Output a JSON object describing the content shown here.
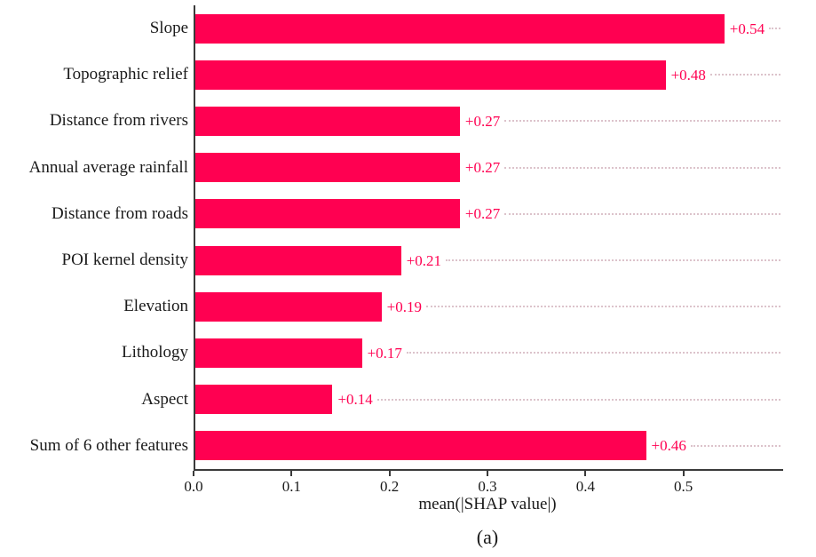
{
  "chart_data": {
    "type": "bar",
    "orientation": "horizontal",
    "title": "",
    "categories": [
      "Slope",
      "Topographic relief",
      "Distance from rivers",
      "Annual average rainfall",
      "Distance from roads",
      "POI kernel density",
      "Elevation",
      "Lithology",
      "Aspect",
      "Sum of 6 other features"
    ],
    "values": [
      0.54,
      0.48,
      0.27,
      0.27,
      0.27,
      0.21,
      0.19,
      0.17,
      0.14,
      0.46
    ],
    "value_labels": [
      "+0.54",
      "+0.48",
      "+0.27",
      "+0.27",
      "+0.27",
      "+0.21",
      "+0.19",
      "+0.17",
      "+0.14",
      "+0.46"
    ],
    "xlabel": "mean(|SHAP value|)",
    "xtick_labels": [
      "0.0",
      "0.1",
      "0.2",
      "0.3",
      "0.4",
      "0.5"
    ],
    "xtick_values": [
      0.0,
      0.1,
      0.2,
      0.3,
      0.4,
      0.5
    ],
    "xlim": [
      0.0,
      0.6
    ],
    "grid": "dotted horizontal leader lines per bar",
    "legend": "none",
    "colors": {
      "bar": "#ff0051",
      "value_label": "#ff0051",
      "leader_line": "#dcc3cb",
      "axis": "#3a3a3a",
      "text": "#1a1a1a"
    }
  },
  "caption": "(a)"
}
